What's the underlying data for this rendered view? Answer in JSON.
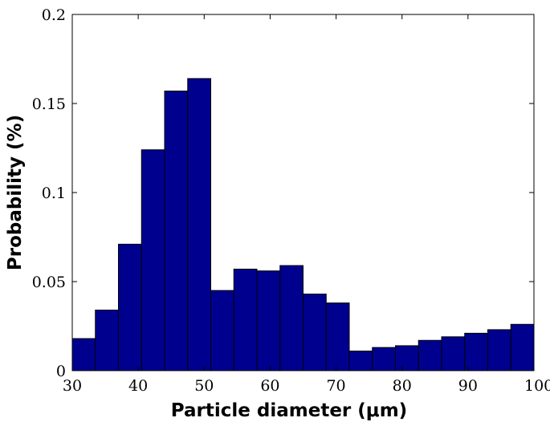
{
  "chart_data": {
    "type": "bar",
    "title": "",
    "xlabel": "Particle diameter (μm)",
    "ylabel": "Probability (%)",
    "xlim": [
      30,
      100
    ],
    "ylim": [
      0,
      0.2
    ],
    "xticks": [
      30,
      40,
      50,
      60,
      70,
      80,
      90,
      100
    ],
    "xtick_labels": [
      "30",
      "40",
      "50",
      "60",
      "70",
      "80",
      "90",
      "100"
    ],
    "yticks": [
      0,
      0.05,
      0.1,
      0.15,
      0.2
    ],
    "ytick_labels": [
      "0",
      "0.05",
      "0.1",
      "0.15",
      "0.2"
    ],
    "grid": false,
    "bar_color": "#00008f",
    "bin_edges": [
      30,
      33.5,
      37,
      40.5,
      44,
      47.5,
      51,
      54.5,
      58,
      61.5,
      65,
      68.5,
      72,
      75.5,
      79,
      82.5,
      86,
      89.5,
      93,
      96.5,
      100
    ],
    "values": [
      0.018,
      0.034,
      0.071,
      0.124,
      0.157,
      0.164,
      0.045,
      0.057,
      0.056,
      0.059,
      0.043,
      0.038,
      0.011,
      0.013,
      0.014,
      0.017,
      0.019,
      0.021,
      0.023,
      0.026
    ]
  }
}
